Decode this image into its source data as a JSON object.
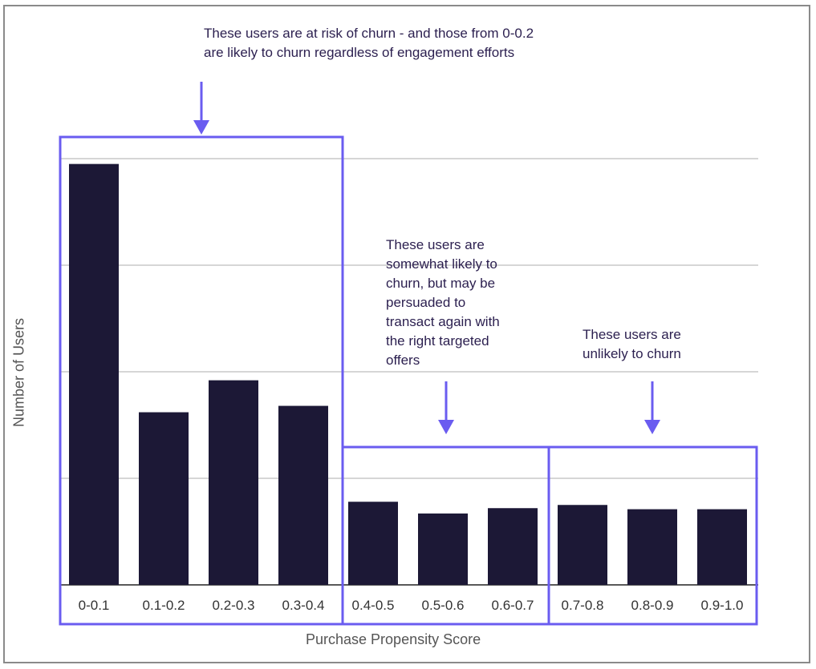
{
  "colors": {
    "bar": "#1c1836",
    "highlight": "#6a5cf0",
    "grid": "#c8c8c8",
    "annotation_text": "#2b1f4f"
  },
  "chart_data": {
    "type": "bar",
    "title": "",
    "xlabel": "Purchase Propensity Score",
    "ylabel": "Number of Users",
    "categories": [
      "0-0.1",
      "0.1-0.2",
      "0.2-0.3",
      "0.3-0.4",
      "0.4-0.5",
      "0.5-0.6",
      "0.6-0.7",
      "0.7-0.8",
      "0.8-0.9",
      "0.9-1.0"
    ],
    "values": [
      3.95,
      1.62,
      1.92,
      1.68,
      0.78,
      0.67,
      0.72,
      0.75,
      0.71,
      0.71
    ],
    "ylim": [
      0,
      4
    ],
    "grid": true,
    "y_tick_labels_shown": false,
    "groups": [
      {
        "from": "0-0.1",
        "to": "0.3-0.4",
        "annotation": "These users are at risk of churn - and those from 0-0.2\nare likely to churn regardless of engagement efforts"
      },
      {
        "from": "0.4-0.5",
        "to": "0.6-0.7",
        "annotation": "These users are\nsomewhat likely to\nchurn, but may be\npersuaded to\ntransact again with\nthe right targeted\noffers"
      },
      {
        "from": "0.7-0.8",
        "to": "0.9-1.0",
        "annotation": "These users are\nunlikely to churn"
      }
    ]
  }
}
